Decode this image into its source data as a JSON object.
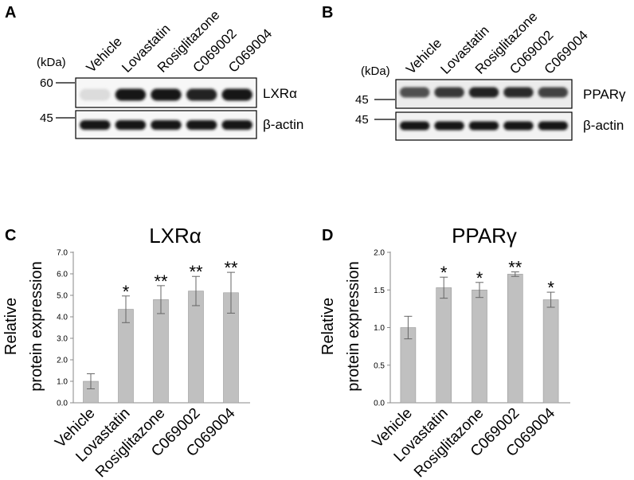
{
  "panels": {
    "A": "A",
    "B": "B",
    "C": "C",
    "D": "D"
  },
  "blots": [
    {
      "lanes": [
        "Vehicle",
        "Lovastatin",
        "Rosiglitazone",
        "C069002",
        "C069004"
      ],
      "kda_unit": "(kDa)",
      "target_marker": "60",
      "control_marker": "45",
      "target_label": "LXRα",
      "control_label": "β-actin",
      "target_intensity": [
        0.15,
        1.0,
        1.0,
        0.95,
        1.0
      ]
    },
    {
      "lanes": [
        "Vehicle",
        "Lovastatin",
        "Rosiglitazone",
        "C069002",
        "C069004"
      ],
      "kda_unit": "(kDa)",
      "target_marker": "45",
      "control_marker": "45",
      "target_label": "PPARγ",
      "control_label": "β-actin",
      "target_intensity": [
        0.75,
        0.85,
        0.95,
        0.9,
        0.8
      ]
    }
  ],
  "chart_data": [
    {
      "type": "bar",
      "title": "LXRα",
      "ylabel_lines": [
        "Relative",
        "protein expression"
      ],
      "categories": [
        "Vehicle",
        "Lovastatin",
        "Rosiglitazone",
        "C069002",
        "C069004"
      ],
      "values": [
        1.0,
        4.35,
        4.8,
        5.2,
        5.12
      ],
      "errors": [
        0.35,
        0.62,
        0.65,
        0.68,
        0.95
      ],
      "significance": [
        "",
        "*",
        "**",
        "**",
        "**"
      ],
      "ylim": [
        0,
        7
      ],
      "yticks": [
        "0.0",
        "1.0",
        "2.0",
        "3.0",
        "4.0",
        "5.0",
        "6.0",
        "7.0"
      ],
      "bar_color": "#c0c0c0",
      "grid": false
    },
    {
      "type": "bar",
      "title": "PPARγ",
      "ylabel_lines": [
        "Relative",
        "protein expression"
      ],
      "categories": [
        "Vehicle",
        "Lovastatin",
        "Rosiglitazone",
        "C069002",
        "C069004"
      ],
      "values": [
        1.0,
        1.53,
        1.5,
        1.71,
        1.37
      ],
      "errors": [
        0.15,
        0.14,
        0.1,
        0.03,
        0.1
      ],
      "significance": [
        "",
        "*",
        "*",
        "**",
        "*"
      ],
      "ylim": [
        0,
        2
      ],
      "yticks": [
        "0.0",
        "0.5",
        "1.0",
        "1.5",
        "2.0"
      ],
      "bar_color": "#c0c0c0",
      "grid": false
    }
  ]
}
